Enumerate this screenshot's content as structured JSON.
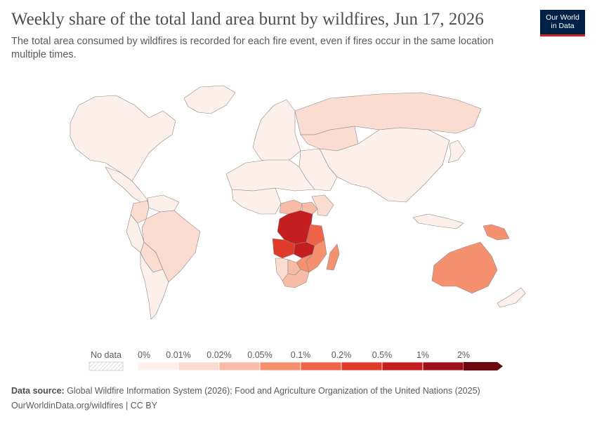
{
  "header": {
    "title": "Weekly share of the total land area burnt by wildfires, Jun 17, 2026",
    "subtitle": "The total area consumed by wildfires is recorded for each fire event, even if fires occur in the same location multiple times."
  },
  "logo": {
    "line1": "Our World",
    "line2": "in Data"
  },
  "legend": {
    "no_data_label": "No data",
    "bins": [
      {
        "label": "0%",
        "color": "#fdf0ea"
      },
      {
        "label": "0.01%",
        "color": "#fbdcd0"
      },
      {
        "label": "0.02%",
        "color": "#f8bba6"
      },
      {
        "label": "0.05%",
        "color": "#f5916f"
      },
      {
        "label": "0.1%",
        "color": "#ef6448"
      },
      {
        "label": "0.2%",
        "color": "#e03a2a"
      },
      {
        "label": "0.5%",
        "color": "#c41e20"
      },
      {
        "label": "1%",
        "color": "#9e1018"
      },
      {
        "label": "2%",
        "color": "#6a0a10"
      }
    ]
  },
  "regions": [
    {
      "name": "North America",
      "color": "#fdf0ea"
    },
    {
      "name": "Greenland",
      "color": "#fdf0ea"
    },
    {
      "name": "Central America",
      "color": "#fdf0ea"
    },
    {
      "name": "Venezuela",
      "color": "#fdf0ea"
    },
    {
      "name": "Colombia",
      "color": "#fbdcd0"
    },
    {
      "name": "Brazil",
      "color": "#fbdcd0"
    },
    {
      "name": "Bolivia",
      "color": "#fbdcd0"
    },
    {
      "name": "Peru",
      "color": "#fdf0ea"
    },
    {
      "name": "Southern South America",
      "color": "#fdf0ea"
    },
    {
      "name": "Europe",
      "color": "#fdf0ea"
    },
    {
      "name": "Russia",
      "color": "#fbdcd0"
    },
    {
      "name": "Kazakhstan",
      "color": "#fbdcd0"
    },
    {
      "name": "Asia",
      "color": "#fdf0ea"
    },
    {
      "name": "Middle East",
      "color": "#fdf0ea"
    },
    {
      "name": "North Africa",
      "color": "#fdf0ea"
    },
    {
      "name": "West Africa",
      "color": "#fdf0ea"
    },
    {
      "name": "Central African Republic",
      "color": "#f8bba6"
    },
    {
      "name": "South Sudan",
      "color": "#f8bba6"
    },
    {
      "name": "Ethiopia",
      "color": "#fbdcd0"
    },
    {
      "name": "DR Congo",
      "color": "#c41e20"
    },
    {
      "name": "Angola",
      "color": "#e03a2a"
    },
    {
      "name": "Zambia",
      "color": "#c41e20"
    },
    {
      "name": "Tanzania",
      "color": "#ef6448"
    },
    {
      "name": "Mozambique",
      "color": "#f5916f"
    },
    {
      "name": "Zimbabwe",
      "color": "#f5916f"
    },
    {
      "name": "Namibia",
      "color": "#fbdcd0"
    },
    {
      "name": "Botswana",
      "color": "#f8bba6"
    },
    {
      "name": "South Africa",
      "color": "#f8bba6"
    },
    {
      "name": "Madagascar",
      "color": "#f5916f"
    },
    {
      "name": "Australia",
      "color": "#f5916f"
    },
    {
      "name": "Papua New Guinea",
      "color": "#f5916f"
    },
    {
      "name": "Indonesia",
      "color": "#fdf0ea"
    },
    {
      "name": "New Zealand",
      "color": "#fdf0ea"
    },
    {
      "name": "Japan",
      "color": "#fdf0ea"
    }
  ],
  "footer": {
    "source_label": "Data source:",
    "source_text": " Global Wildfire Information System (2026); Food and Agriculture Organization of the United Nations (2025)",
    "url_line": "OurWorldinData.org/wildfires | CC BY"
  }
}
